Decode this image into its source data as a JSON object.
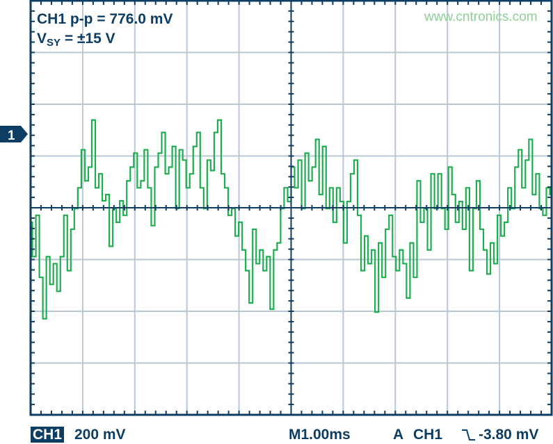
{
  "readouts": {
    "measurement": "CH1 p-p = 776.0 mV",
    "supply_main": "V",
    "supply_sub": "SY",
    "supply_rest": " = ±15 V"
  },
  "channel_marker": "1",
  "status_bar": {
    "channel": "CH1",
    "volts_per_div": "200 mV",
    "timebase": "M1.00ms",
    "trigger_mode": "A",
    "trigger_source": "CH1",
    "trigger_slope_icon": "falling-edge-icon",
    "trigger_level": "-3.80 mV"
  },
  "watermark": "www.cntronics.com",
  "colors": {
    "trace": "#1fae4f",
    "frame": "#0e3d63",
    "grid": "#b9c7d5"
  },
  "chart_data": {
    "type": "line",
    "title": "",
    "xlabel": "",
    "ylabel": "",
    "x_unit": "ms",
    "y_unit": "mV",
    "xlim": [
      0,
      10
    ],
    "ylim": [
      -800,
      800
    ],
    "x_divisions": 10,
    "y_divisions": 8,
    "grid": true,
    "series": [
      {
        "values": [
          -56,
          -189,
          -29,
          -269,
          -429,
          -189,
          -296,
          -216,
          -323,
          -189,
          -29,
          -243,
          -83,
          -3,
          77,
          224,
          104,
          157,
          339,
          77,
          131,
          27,
          51,
          -149,
          -3,
          -56,
          27,
          -29,
          104,
          157,
          211,
          77,
          104,
          224,
          77,
          -69,
          157,
          211,
          291,
          131,
          157,
          237,
          -3,
          224,
          184,
          77,
          131,
          237,
          291,
          77,
          -3,
          184,
          144,
          291,
          339,
          131,
          77,
          -29,
          -3,
          -109,
          -56,
          -163,
          -243,
          -368,
          -83,
          -216,
          -163,
          -243,
          -189,
          -392,
          -163,
          -136,
          -3,
          77,
          24,
          157,
          77,
          184,
          -3,
          211,
          104,
          157,
          264,
          51,
          237,
          -3,
          77,
          -56,
          77,
          24,
          -136,
          24,
          131,
          184,
          -29,
          -243,
          -109,
          -216,
          -163,
          -403,
          -136,
          -269,
          -83,
          -29,
          -189,
          -243,
          -163,
          -216,
          -349,
          -136,
          -269,
          104,
          -56,
          -3,
          -163,
          131,
          -3,
          131,
          -3,
          -83,
          157,
          51,
          -56,
          24,
          -83,
          77,
          -243,
          -3,
          104,
          -83,
          -163,
          -256,
          -136,
          -216,
          -29,
          -109,
          -56,
          77,
          -3,
          157,
          224,
          77,
          184,
          264,
          51,
          131,
          -3,
          -29,
          77,
          51
        ]
      }
    ]
  }
}
